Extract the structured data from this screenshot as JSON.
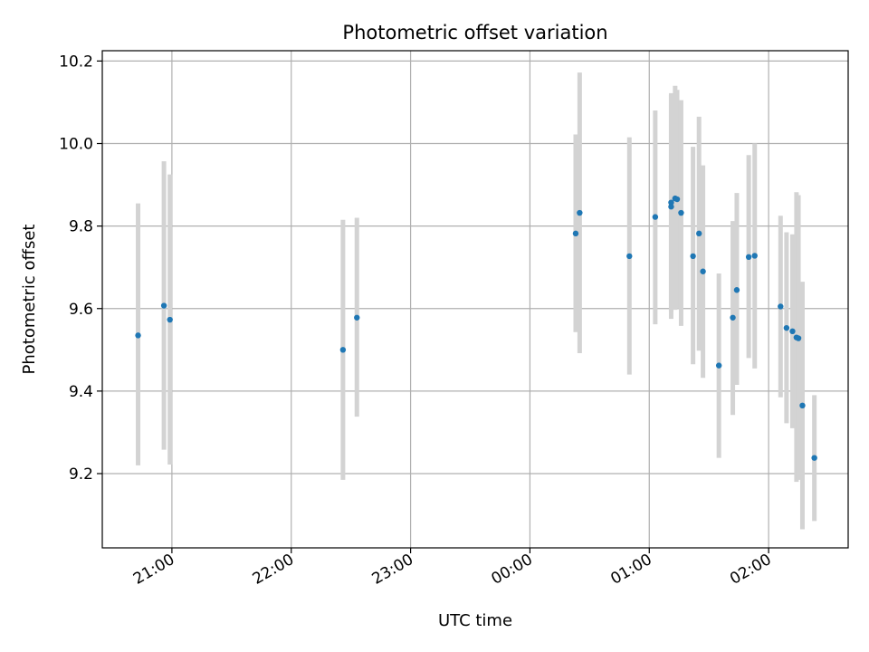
{
  "chart_data": {
    "type": "scatter",
    "title": "Photometric offset variation",
    "xlabel": "UTC time",
    "ylabel": "Photometric offset",
    "x_axis_kind": "time (HH:MM), spanning midnight",
    "xlim": [
      "20:25",
      "02:40"
    ],
    "ylim": [
      9.02,
      10.225
    ],
    "x_ticks": [
      "21:00",
      "22:00",
      "23:00",
      "00:00",
      "01:00",
      "02:00"
    ],
    "y_ticks": [
      "9.2",
      "9.4",
      "9.6",
      "9.8",
      "10.0",
      "10.2"
    ],
    "grid": true,
    "legend": "none",
    "colors": {
      "point": "#1f77b4",
      "error_bar": "#d3d3d3",
      "grid": "#b0b0b0"
    },
    "points": [
      {
        "time": "20:43",
        "y": 9.535,
        "err_low": 9.22,
        "err_high": 9.855
      },
      {
        "time": "20:56",
        "y": 9.607,
        "err_low": 9.258,
        "err_high": 9.957
      },
      {
        "time": "20:59",
        "y": 9.573,
        "err_low": 9.222,
        "err_high": 9.925
      },
      {
        "time": "22:26",
        "y": 9.5,
        "err_low": 9.185,
        "err_high": 9.815
      },
      {
        "time": "22:33",
        "y": 9.578,
        "err_low": 9.338,
        "err_high": 9.82
      },
      {
        "time": "00:23",
        "y": 9.782,
        "err_low": 9.543,
        "err_high": 10.022
      },
      {
        "time": "00:25",
        "y": 9.832,
        "err_low": 9.492,
        "err_high": 10.172
      },
      {
        "time": "00:50",
        "y": 9.727,
        "err_low": 9.44,
        "err_high": 10.015
      },
      {
        "time": "01:03",
        "y": 9.822,
        "err_low": 9.562,
        "err_high": 10.08
      },
      {
        "time": "01:11",
        "y": 9.857,
        "err_low": 9.592,
        "err_high": 10.122
      },
      {
        "time": "01:11",
        "y": 9.847,
        "err_low": 9.575,
        "err_high": 10.118
      },
      {
        "time": "01:13",
        "y": 9.867,
        "err_low": 9.597,
        "err_high": 10.14
      },
      {
        "time": "01:14",
        "y": 9.865,
        "err_low": 9.6,
        "err_high": 10.13
      },
      {
        "time": "01:16",
        "y": 9.832,
        "err_low": 9.558,
        "err_high": 10.105
      },
      {
        "time": "01:22",
        "y": 9.727,
        "err_low": 9.465,
        "err_high": 9.992
      },
      {
        "time": "01:25",
        "y": 9.782,
        "err_low": 9.498,
        "err_high": 10.065
      },
      {
        "time": "01:27",
        "y": 9.69,
        "err_low": 9.432,
        "err_high": 9.947
      },
      {
        "time": "01:35",
        "y": 9.462,
        "err_low": 9.238,
        "err_high": 9.685
      },
      {
        "time": "01:42",
        "y": 9.578,
        "err_low": 9.342,
        "err_high": 9.812
      },
      {
        "time": "01:44",
        "y": 9.645,
        "err_low": 9.415,
        "err_high": 9.88
      },
      {
        "time": "01:50",
        "y": 9.725,
        "err_low": 9.48,
        "err_high": 9.972
      },
      {
        "time": "01:53",
        "y": 9.728,
        "err_low": 9.455,
        "err_high": 10.0
      },
      {
        "time": "02:06",
        "y": 9.605,
        "err_low": 9.385,
        "err_high": 9.825
      },
      {
        "time": "02:09",
        "y": 9.553,
        "err_low": 9.322,
        "err_high": 9.785
      },
      {
        "time": "02:12",
        "y": 9.545,
        "err_low": 9.31,
        "err_high": 9.78
      },
      {
        "time": "02:14",
        "y": 9.53,
        "err_low": 9.18,
        "err_high": 9.882
      },
      {
        "time": "02:15",
        "y": 9.528,
        "err_low": 9.185,
        "err_high": 9.875
      },
      {
        "time": "02:17",
        "y": 9.365,
        "err_low": 9.065,
        "err_high": 9.665
      },
      {
        "time": "02:23",
        "y": 9.238,
        "err_low": 9.085,
        "err_high": 9.39
      }
    ]
  }
}
